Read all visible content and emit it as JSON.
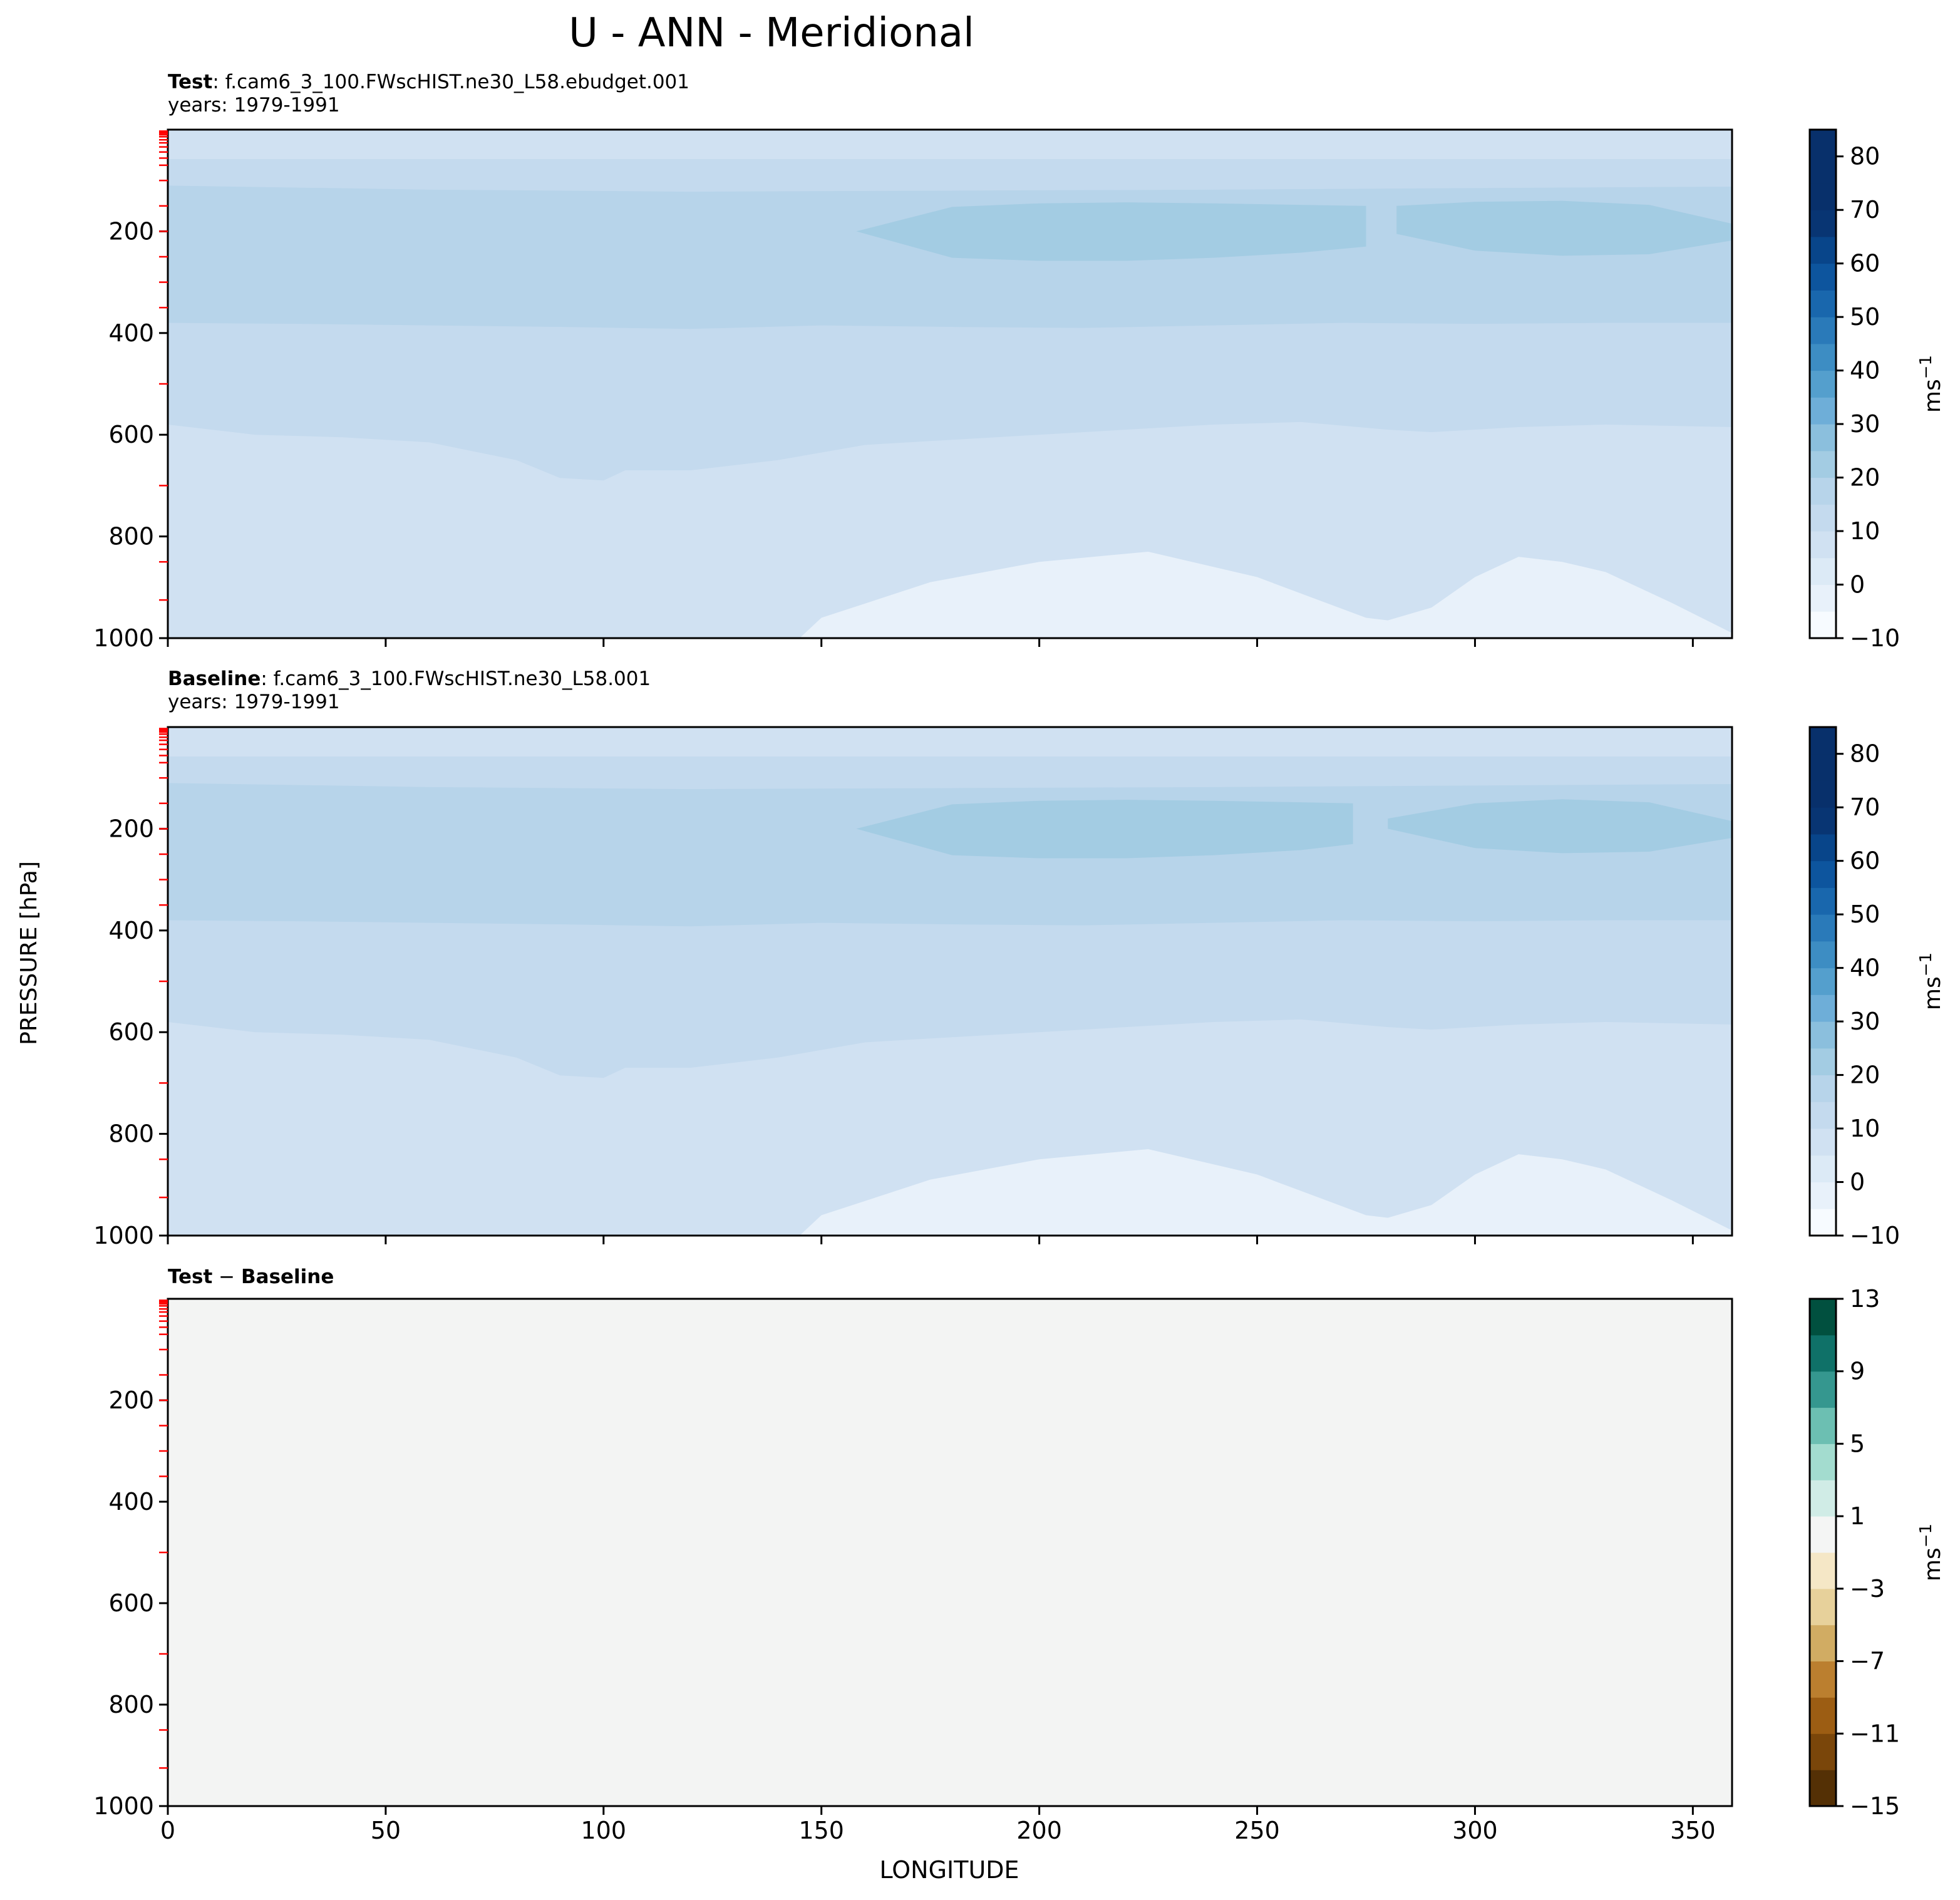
{
  "figure": {
    "suptitle": "U - ANN - Meridional",
    "ylabel": "PRESSURE [hPa]",
    "xlabel": "LONGITUDE"
  },
  "chart_data": [
    {
      "type": "heatmap",
      "panel": "test",
      "title_bold": "Test",
      "title_rest": ": f.cam6_3_100.FWscHIST.ne30_L58.ebudget.001",
      "subtitle": "years: 1979-1991",
      "xlim": [
        0,
        359
      ],
      "ylim": [
        1000,
        0
      ],
      "xticks": [
        0,
        50,
        100,
        150,
        200,
        250,
        300,
        350
      ],
      "xtick_labels_shown": false,
      "yticks": [
        200,
        400,
        600,
        800,
        1000
      ],
      "colormap": "Blues",
      "colorbar": {
        "levels": [
          -10,
          -5,
          0,
          5,
          10,
          15,
          20,
          25,
          30,
          35,
          40,
          45,
          50,
          55,
          60,
          65,
          70,
          75,
          80,
          85
        ],
        "ticks": [
          -10,
          0,
          10,
          20,
          30,
          40,
          50,
          60,
          70,
          80
        ],
        "label": "ms",
        "label_sup": "−1"
      },
      "model_levels_hPa": [
        3,
        5,
        7,
        10,
        14,
        20,
        26,
        34,
        44,
        56,
        70,
        100,
        150,
        200,
        250,
        300,
        350,
        500,
        700,
        850,
        925
      ],
      "fields": [
        {
          "band": "0-5",
          "lon": [
            0,
            20,
            40,
            60,
            80,
            100,
            105,
            110,
            120,
            130,
            145,
            150,
            175,
            200,
            225,
            250,
            275,
            280,
            290,
            300,
            310,
            320,
            330,
            345,
            359
          ],
          "top_hPa": [
            1000,
            1000,
            1000,
            1000,
            1000,
            1000,
            1000,
            1000,
            1000,
            1000,
            1000,
            960,
            890,
            850,
            830,
            880,
            960,
            965,
            940,
            880,
            840,
            850,
            870,
            930,
            990
          ]
        },
        {
          "band": "5-10",
          "lon": [
            0,
            20,
            40,
            60,
            80,
            90,
            100,
            105,
            120,
            140,
            160,
            200,
            240,
            260,
            280,
            290,
            310,
            330,
            359
          ],
          "top_hPa": [
            580,
            600,
            605,
            615,
            650,
            685,
            690,
            670,
            670,
            650,
            620,
            600,
            580,
            575,
            590,
            595,
            585,
            580,
            585
          ]
        },
        {
          "band": "10-15",
          "lon": [
            0,
            30,
            60,
            90,
            120,
            150,
            180,
            210,
            240,
            270,
            300,
            330,
            359
          ],
          "top_hPa": [
            380,
            382,
            385,
            388,
            392,
            385,
            388,
            390,
            385,
            380,
            382,
            380,
            380
          ]
        },
        {
          "band": "15-20",
          "lon": [
            0,
            60,
            120,
            180,
            240,
            300,
            359
          ],
          "top_hPa": [
            110,
            118,
            122,
            120,
            118,
            115,
            112
          ]
        },
        {
          "band": "20-25",
          "lon": [
            0,
            359
          ],
          "top_hPa": [
            58,
            58
          ]
        },
        {
          "band": "25-30",
          "jet_lon": [
            158,
            180,
            200,
            220,
            240,
            260,
            275,
            282,
            300,
            320,
            340,
            359
          ],
          "jet_top_hPa": [
            200,
            152,
            145,
            143,
            145,
            148,
            150,
            150,
            142,
            140,
            148,
            185
          ],
          "jet_bottom_hPa": [
            200,
            252,
            258,
            258,
            252,
            242,
            230,
            205,
            238,
            248,
            245,
            218
          ]
        }
      ]
    },
    {
      "type": "heatmap",
      "panel": "baseline",
      "title_bold": "Baseline",
      "title_rest": ": f.cam6_3_100.FWscHIST.ne30_L58.001",
      "subtitle": "years: 1979-1991",
      "xlim": [
        0,
        359
      ],
      "ylim": [
        1000,
        0
      ],
      "xticks": [
        0,
        50,
        100,
        150,
        200,
        250,
        300,
        350
      ],
      "xtick_labels_shown": false,
      "yticks": [
        200,
        400,
        600,
        800,
        1000
      ],
      "colormap": "Blues",
      "colorbar": {
        "levels": [
          -10,
          -5,
          0,
          5,
          10,
          15,
          20,
          25,
          30,
          35,
          40,
          45,
          50,
          55,
          60,
          65,
          70,
          75,
          80,
          85
        ],
        "ticks": [
          -10,
          0,
          10,
          20,
          30,
          40,
          50,
          60,
          70,
          80
        ],
        "label": "ms",
        "label_sup": "−1"
      },
      "model_levels_hPa": [
        3,
        5,
        7,
        10,
        14,
        20,
        26,
        34,
        44,
        56,
        70,
        100,
        150,
        200,
        250,
        300,
        350,
        500,
        700,
        850,
        925
      ],
      "fields": [
        {
          "band": "0-5",
          "lon": [
            0,
            20,
            40,
            60,
            80,
            100,
            105,
            110,
            120,
            130,
            145,
            150,
            175,
            200,
            225,
            250,
            275,
            280,
            290,
            300,
            310,
            320,
            330,
            345,
            359
          ],
          "top_hPa": [
            1000,
            1000,
            1000,
            1000,
            1000,
            1000,
            1000,
            1000,
            1000,
            1000,
            1000,
            960,
            890,
            850,
            830,
            880,
            960,
            965,
            940,
            880,
            840,
            850,
            870,
            930,
            990
          ]
        },
        {
          "band": "5-10",
          "lon": [
            0,
            20,
            40,
            60,
            80,
            90,
            100,
            105,
            120,
            140,
            160,
            200,
            240,
            260,
            280,
            290,
            310,
            330,
            359
          ],
          "top_hPa": [
            580,
            600,
            605,
            615,
            650,
            685,
            690,
            670,
            670,
            650,
            620,
            600,
            580,
            575,
            590,
            595,
            585,
            580,
            585
          ]
        },
        {
          "band": "10-15",
          "lon": [
            0,
            30,
            60,
            90,
            120,
            150,
            180,
            210,
            240,
            270,
            300,
            330,
            359
          ],
          "top_hPa": [
            380,
            382,
            385,
            388,
            392,
            385,
            388,
            390,
            385,
            380,
            382,
            380,
            380
          ]
        },
        {
          "band": "15-20",
          "lon": [
            0,
            60,
            120,
            180,
            240,
            300,
            359
          ],
          "top_hPa": [
            110,
            118,
            122,
            120,
            118,
            115,
            112
          ]
        },
        {
          "band": "20-25",
          "lon": [
            0,
            359
          ],
          "top_hPa": [
            58,
            58
          ]
        },
        {
          "band": "25-30",
          "jet_lon": [
            158,
            180,
            200,
            220,
            240,
            260,
            272,
            280,
            300,
            320,
            340,
            359
          ],
          "jet_top_hPa": [
            200,
            152,
            145,
            143,
            145,
            148,
            150,
            180,
            150,
            142,
            148,
            185
          ],
          "jet_bottom_hPa": [
            200,
            252,
            258,
            258,
            252,
            242,
            230,
            200,
            238,
            248,
            245,
            218
          ]
        }
      ]
    },
    {
      "type": "heatmap",
      "panel": "difference",
      "title_bold": "Test",
      "title_sep": " − ",
      "title_bold2": "Baseline",
      "xlim": [
        0,
        359
      ],
      "ylim": [
        1000,
        0
      ],
      "xticks": [
        0,
        50,
        100,
        150,
        200,
        250,
        300,
        350
      ],
      "xtick_labels_shown": true,
      "yticks": [
        200,
        400,
        600,
        800,
        1000
      ],
      "colormap": "BrBG",
      "colorbar": {
        "levels": [
          -15,
          -13,
          -11,
          -9,
          -7,
          -5,
          -3,
          -1,
          1,
          3,
          5,
          7,
          9,
          11,
          13
        ],
        "ticks": [
          -15,
          -11,
          -7,
          -3,
          1,
          5,
          9,
          13
        ],
        "label": "ms",
        "label_sup": "−1"
      },
      "model_levels_hPa": [
        3,
        5,
        7,
        10,
        14,
        20,
        26,
        34,
        44,
        56,
        70,
        100,
        150,
        200,
        250,
        300,
        350,
        500,
        700,
        850,
        925
      ],
      "fields": [
        {
          "band": "-1-1",
          "uniform": true
        }
      ]
    }
  ],
  "colors": {
    "blues": [
      "#f7fbff",
      "#e8f1fa",
      "#dceaf6",
      "#d0e1f2",
      "#c4daee",
      "#b7d4ea",
      "#a3cce3",
      "#8bbfdd",
      "#6eaed8",
      "#549fcd",
      "#3d8dc3",
      "#2a7ab9",
      "#1967ad",
      "#0d559e",
      "#08458a",
      "#083573",
      "#08306b",
      "#08306b",
      "#08306b"
    ],
    "brbg": [
      "#543005",
      "#7a460a",
      "#9c5d13",
      "#bb7f2f",
      "#d1ac63",
      "#e7d19b",
      "#f5e7c6",
      "#f4f5f4",
      "#d0ece6",
      "#a3dccf",
      "#6cbfb2",
      "#35978f",
      "#0f7168",
      "#01503f",
      "#003c30"
    ],
    "diff_fill": "#f3f4f3",
    "model_level_tick": "#ff0000"
  }
}
